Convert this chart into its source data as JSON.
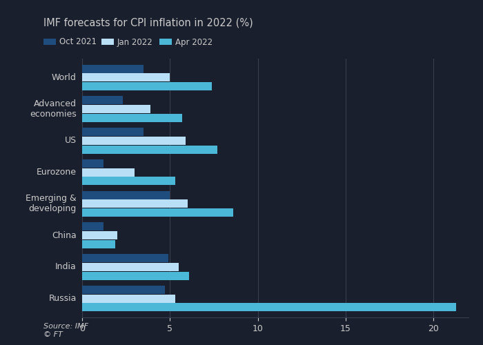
{
  "title": "IMF forecasts for CPI inflation in 2022 (%)",
  "categories": [
    "World",
    "Advanced\neconomies",
    "US",
    "Eurozone",
    "Emerging &\ndeveloping",
    "China",
    "India",
    "Russia"
  ],
  "series": {
    "Oct 2021": [
      3.5,
      2.3,
      3.5,
      1.2,
      5.0,
      1.2,
      4.9,
      4.7
    ],
    "Jan 2022": [
      5.0,
      3.9,
      5.9,
      3.0,
      6.0,
      2.0,
      5.5,
      5.3
    ],
    "Apr 2022": [
      7.4,
      5.7,
      7.7,
      5.3,
      8.6,
      1.9,
      6.1,
      21.3
    ]
  },
  "colors": {
    "Oct 2021": "#1f4e7e",
    "Jan 2022": "#b8dff5",
    "Apr 2022": "#4bb8d8"
  },
  "xlim": [
    0,
    22
  ],
  "xticks": [
    0,
    5,
    10,
    15,
    20
  ],
  "bar_height": 0.28,
  "background_color": "#1a1f2e",
  "plot_bg_color": "#1a1f2e",
  "text_color": "#cccccc",
  "grid_color": "#3a3f50",
  "source_text": "Source: IMF\n© FT",
  "title_fontsize": 10.5,
  "legend_fontsize": 8.5,
  "tick_fontsize": 9,
  "label_fontsize": 9
}
